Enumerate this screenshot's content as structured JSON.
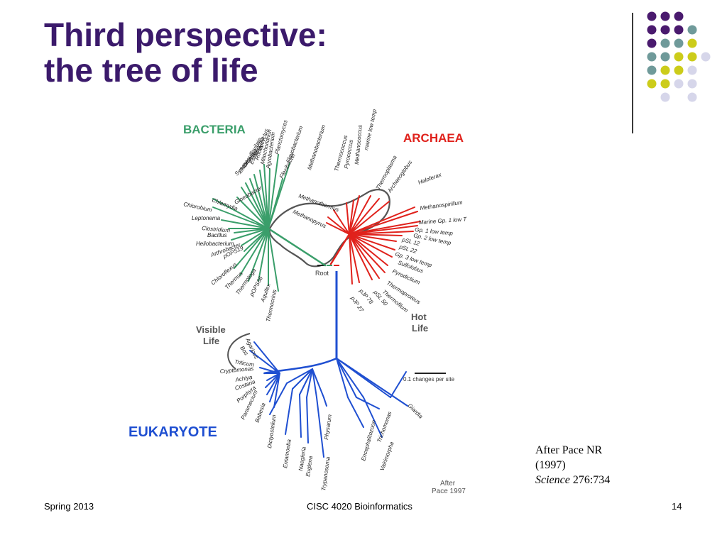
{
  "slide": {
    "title_line1": "Third perspective:",
    "title_line2": "the tree of life",
    "footer_left": "Spring 2013",
    "footer_center": "CISC 4020 Bioinformatics",
    "footer_right": "14",
    "citation": {
      "line1": "After Pace NR",
      "line2": "(1997)",
      "journal": "Science",
      "volume": "276:734"
    }
  },
  "colors": {
    "title": "#3b1a6b",
    "bacteria": "#3a9e6a",
    "archaea": "#e0221c",
    "eukarya": "#1f4fd1",
    "outline": "#555555",
    "dot_purple": "#4a1a6e",
    "dot_teal": "#6f9a9a",
    "dot_yellow": "#cccc1a",
    "dot_lavender": "#d6d6ea"
  },
  "decoration": {
    "dot_grid_colors": [
      [
        "purple",
        "purple",
        "purple",
        null
      ],
      [
        "purple",
        "purple",
        "purple",
        "teal"
      ],
      [
        "purple",
        "teal",
        "teal",
        "yellow"
      ],
      [
        "teal",
        "teal",
        "yellow",
        "yellow",
        "lavender"
      ],
      [
        "teal",
        "yellow",
        "yellow",
        "lavender"
      ],
      [
        "yellow",
        "yellow",
        "lavender",
        "lavender"
      ],
      [
        null,
        "lavender",
        null,
        "lavender"
      ]
    ]
  },
  "tree": {
    "domains": {
      "bacteria": "BACTERIA",
      "archaea": "ARCHAEA",
      "eukaryote": "EUKARYOTE"
    },
    "annotations": {
      "visible_life": [
        "Visible",
        "Life"
      ],
      "hot_life": [
        "Hot",
        "Life"
      ],
      "root": "Root",
      "scale_bar": "0.1 changes per site",
      "after_pace": [
        "After",
        "Pace 1997"
      ]
    },
    "bacteria_taxa": [
      "Mitochondrion",
      "Rhodocyclus",
      "Escherichia",
      "Desulfovibrio",
      "chloroplast",
      "Synechococcus",
      "Agrobacterium",
      "Planctomyces",
      "Flexibacter",
      "Flavobacterium",
      "Gloeobacter",
      "Chlamydia",
      "Chlorobium",
      "Leptonema",
      "Clostridium",
      "Bacillus",
      "Heliobacterium",
      "Arthrobacter",
      "pOPS19",
      "Chloroflexus",
      "Thermus",
      "Thermotoga",
      "pOPS66",
      "Aquifex",
      "Thermocrinis"
    ],
    "archaea_taxa": [
      "Methanococcus",
      "Pyrococcus",
      "Thermococcus",
      "Methanobacterium",
      "Methanothermus",
      "Methanopyrus",
      "marine low temp",
      "Thermoplasma",
      "Archaeoglobus",
      "Haloferax",
      "Methanospirillum",
      "Marine Gp. 1 low T",
      "Gp. 1 low temp",
      "Gp. 2 low temp",
      "pSL 12",
      "pSL 22",
      "Gp. 3 low temp",
      "Sulfolobus",
      "Pyrodictium",
      "Thermoproteus",
      "Thermofilum",
      "pSL 50",
      "pJP 78",
      "pJP 27"
    ],
    "eukarya_taxa": [
      "Agaricus",
      "Bos",
      "Triticum",
      "Cryptomonas",
      "Achlya",
      "Costaria",
      "Porphyra",
      "Paramecium",
      "Babesia",
      "Dictyostelium",
      "Entamoeba",
      "Naegleria",
      "Euglena",
      "Trypanosoma",
      "Physarum",
      "Encephalitozoon",
      "Trichomonas",
      "Vairimorpha",
      "Giardia"
    ]
  }
}
